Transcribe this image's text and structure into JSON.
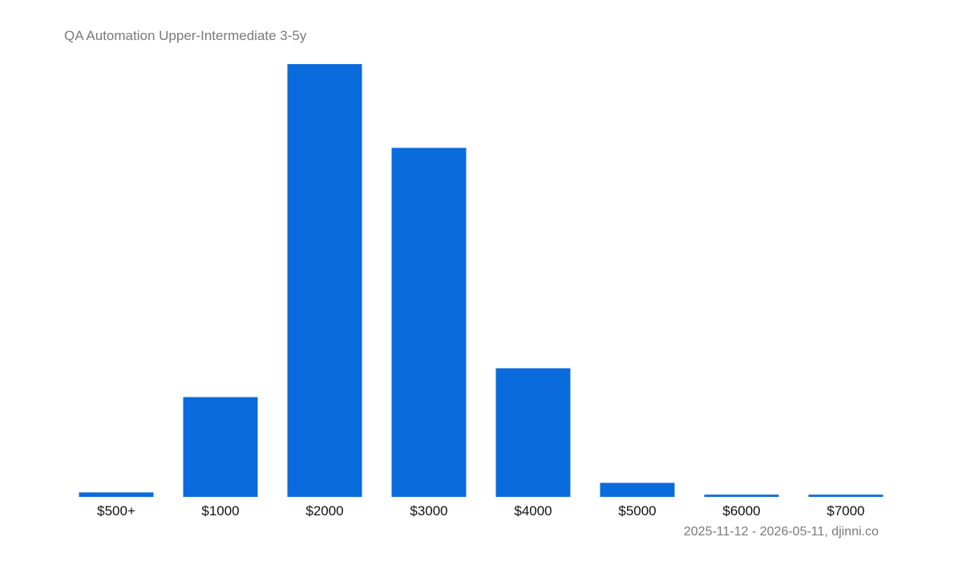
{
  "chart_data": {
    "type": "bar",
    "title": "QA Automation Upper-Intermediate 3-5y",
    "footer": "2025-11-12 - 2026-05-11, djinni.co",
    "categories": [
      "$500+",
      "$1000",
      "$2000",
      "$3000",
      "$4000",
      "$5000",
      "$6000",
      "$7000"
    ],
    "values": [
      5.6,
      124.5,
      540,
      435.5,
      160.5,
      17.5,
      2.8,
      2.8
    ],
    "ylim": [
      0,
      540
    ],
    "grid": false,
    "legend": "none",
    "bar_color": "#0a6bdc"
  }
}
